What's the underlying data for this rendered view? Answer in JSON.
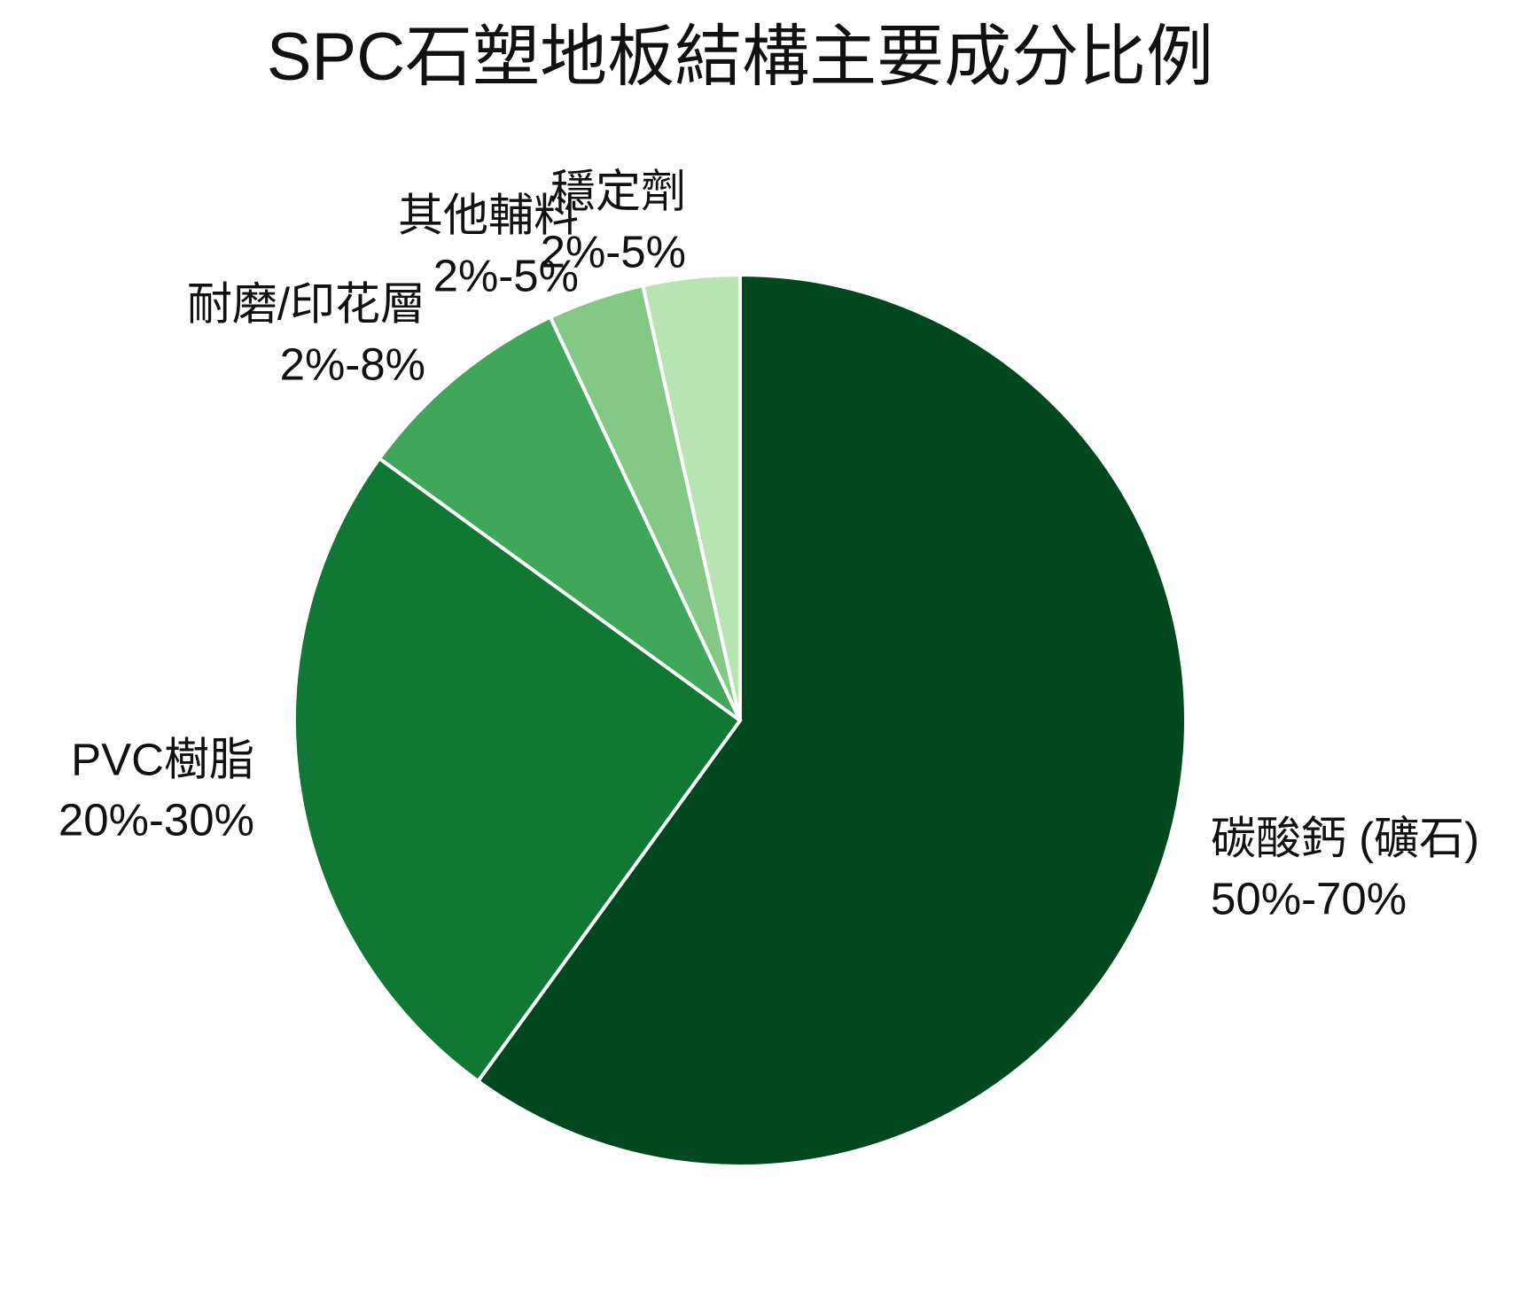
{
  "chart_data": {
    "type": "pie",
    "title": "SPC石塑地板結構主要成分比例",
    "categories": [
      "碳酸鈣 (礦石)",
      "PVC樹脂",
      "耐磨/印花層",
      "其他輔料",
      "穩定劑"
    ],
    "ranges": [
      "50%-70%",
      "20%-30%",
      "2%-8%",
      "2%-5%",
      "2%-5%"
    ],
    "values": [
      60,
      25,
      8,
      3.5,
      3.5
    ],
    "colors": [
      "#02481f",
      "#107735",
      "#3fa65a",
      "#83c985",
      "#b8e3b3"
    ]
  }
}
